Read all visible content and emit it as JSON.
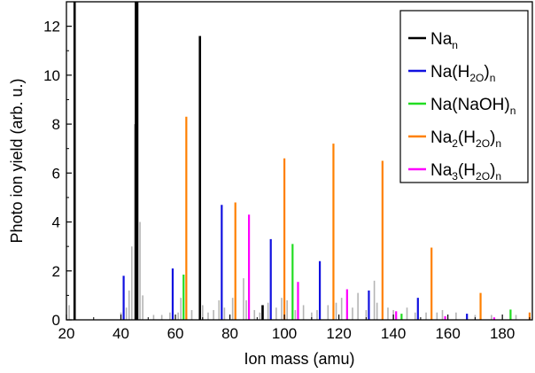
{
  "chart_data": {
    "type": "line",
    "xlabel": "Ion mass (amu)",
    "ylabel": "Photo ion yield (arb. u.)",
    "xlim": [
      20,
      191
    ],
    "ylim": [
      0,
      13
    ],
    "xticks": [
      20,
      40,
      60,
      80,
      100,
      120,
      140,
      160,
      180
    ],
    "yticks": [
      0,
      2,
      4,
      6,
      8,
      10,
      12
    ],
    "legend_position": "top-right",
    "series": [
      {
        "name": "Na_n",
        "color": "#000000",
        "peaks": [
          [
            23,
            13.5
          ],
          [
            45.5,
            13.5
          ],
          [
            46,
            13.5
          ],
          [
            69,
            11.6
          ],
          [
            92,
            0.6
          ]
        ]
      },
      {
        "name": "Na(H_2O)_n",
        "color": "#1010e0",
        "peaks": [
          [
            41,
            1.8
          ],
          [
            59,
            2.1
          ],
          [
            77,
            4.7
          ],
          [
            95,
            3.3
          ],
          [
            113,
            2.4
          ],
          [
            131,
            1.2
          ],
          [
            149,
            0.9
          ],
          [
            167,
            0.25
          ]
        ]
      },
      {
        "name": "Na(NaOH)_n",
        "color": "#22dd22",
        "peaks": [
          [
            63,
            1.85
          ],
          [
            103,
            3.1
          ],
          [
            143,
            0.25
          ],
          [
            183,
            0.42
          ]
        ]
      },
      {
        "name": "Na_2(H_2O)_n",
        "color": "#ff8000",
        "peaks": [
          [
            64,
            8.3
          ],
          [
            82,
            4.8
          ],
          [
            100,
            6.6
          ],
          [
            118,
            7.2
          ],
          [
            136,
            6.5
          ],
          [
            154,
            2.95
          ],
          [
            172,
            1.1
          ],
          [
            190,
            0.3
          ]
        ]
      },
      {
        "name": "Na_3(H_2O)_n",
        "color": "#ff00ff",
        "peaks": [
          [
            87,
            4.3
          ],
          [
            105,
            1.55
          ],
          [
            123,
            1.25
          ],
          [
            141,
            0.35
          ],
          [
            159,
            0.15
          ],
          [
            177,
            0.1
          ]
        ]
      }
    ],
    "background_color": "#b4b4b4",
    "background_peaks": [
      [
        21,
        0.6
      ],
      [
        40,
        0.3
      ],
      [
        42,
        0.5
      ],
      [
        43,
        1.2
      ],
      [
        44,
        3.0
      ],
      [
        45,
        8.0
      ],
      [
        47,
        4.0
      ],
      [
        48,
        1.0
      ],
      [
        52,
        0.2
      ],
      [
        55,
        0.2
      ],
      [
        58,
        0.3
      ],
      [
        61,
        0.3
      ],
      [
        62,
        0.9
      ],
      [
        66,
        0.4
      ],
      [
        70,
        0.6
      ],
      [
        72,
        0.3
      ],
      [
        74,
        0.4
      ],
      [
        76,
        0.8
      ],
      [
        78,
        0.5
      ],
      [
        81,
        0.9
      ],
      [
        85,
        1.7
      ],
      [
        86,
        0.8
      ],
      [
        89,
        0.4
      ],
      [
        91,
        0.3
      ],
      [
        94,
        0.7
      ],
      [
        97,
        0.5
      ],
      [
        99,
        0.9
      ],
      [
        101,
        0.8
      ],
      [
        104,
        0.4
      ],
      [
        107,
        0.6
      ],
      [
        110,
        0.3
      ],
      [
        112,
        0.4
      ],
      [
        116,
        0.6
      ],
      [
        119,
        0.7
      ],
      [
        121,
        0.9
      ],
      [
        125,
        0.5
      ],
      [
        127,
        1.1
      ],
      [
        130,
        0.4
      ],
      [
        133,
        1.6
      ],
      [
        134,
        0.7
      ],
      [
        138,
        0.5
      ],
      [
        140,
        0.4
      ],
      [
        145,
        0.5
      ],
      [
        148,
        0.3
      ],
      [
        152,
        0.3
      ],
      [
        156,
        0.3
      ],
      [
        158,
        0.4
      ],
      [
        163,
        0.3
      ],
      [
        170,
        0.2
      ],
      [
        176,
        0.2
      ],
      [
        185,
        0.2
      ]
    ]
  }
}
